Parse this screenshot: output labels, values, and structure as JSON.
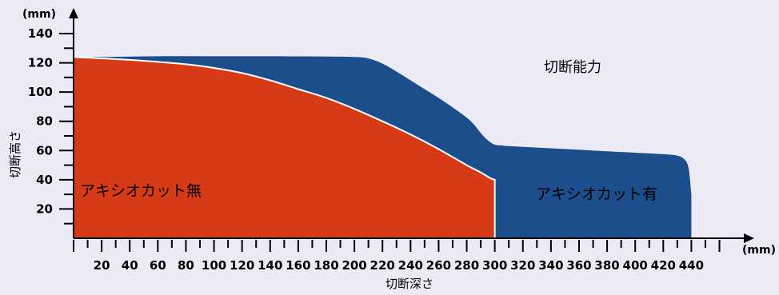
{
  "chart_data": {
    "type": "area",
    "title": "切断能力",
    "xlabel": "切断深さ",
    "ylabel": "切断高さ",
    "x_unit": "(mm)",
    "y_unit": "(mm)",
    "xlim": [
      0,
      460
    ],
    "ylim": [
      0,
      150
    ],
    "x_ticks": [
      20,
      40,
      60,
      80,
      100,
      120,
      140,
      160,
      180,
      200,
      220,
      240,
      260,
      280,
      300,
      320,
      340,
      360,
      380,
      400,
      420,
      440
    ],
    "y_ticks": [
      20,
      40,
      60,
      80,
      100,
      120,
      140
    ],
    "grid": false,
    "colors": {
      "background": "#ecebf5",
      "with_axial_cut": "#1c4e8c",
      "without_axial_cut": "#d73a17",
      "divider": "#ffffff",
      "axis": "#000000"
    },
    "series": [
      {
        "name": "アキシオカット有",
        "x": [
          0,
          20,
          60,
          100,
          140,
          180,
          200,
          210,
          220,
          230,
          240,
          250,
          260,
          270,
          280,
          285,
          290,
          295,
          300,
          305,
          310,
          340,
          380,
          420,
          430,
          435,
          438,
          440
        ],
        "y": [
          124,
          124,
          124.5,
          124.5,
          124.5,
          124.3,
          124,
          123,
          119.5,
          114,
          108,
          102,
          96,
          89.5,
          82.5,
          78,
          72,
          67,
          64,
          63.5,
          63,
          61.5,
          59.5,
          57.5,
          56.5,
          54,
          48,
          30
        ]
      },
      {
        "name": "アキシオカット無",
        "x": [
          0,
          40,
          80,
          100,
          120,
          140,
          160,
          180,
          200,
          220,
          240,
          260,
          280,
          290,
          297,
          300
        ],
        "y": [
          124,
          122,
          119,
          116.5,
          113,
          108,
          102,
          96,
          88.5,
          80,
          71,
          61,
          50,
          45,
          41,
          40
        ]
      }
    ]
  }
}
